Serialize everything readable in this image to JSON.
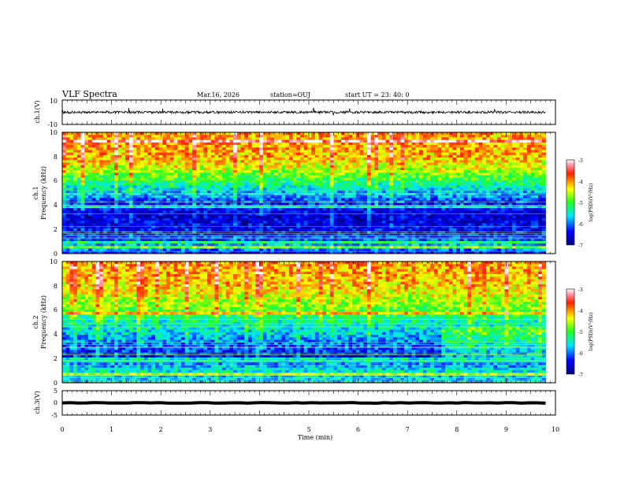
{
  "header": {
    "title": "VLF Spectra",
    "date": "Mar.16, 2026",
    "station": "station=OUJ",
    "start": "start  UT =   23: 40: 0"
  },
  "chart_data": [
    {
      "id": "ch1-waveform",
      "type": "line",
      "ylabel": "ch.1(V)",
      "ylim": [
        -10,
        10
      ],
      "yticks": [
        "10",
        "-10"
      ],
      "xlim": [
        0,
        10
      ],
      "description_values": {
        "baseline": 0,
        "noise_amplitude": 2,
        "data_end_min": 9.8
      }
    },
    {
      "id": "ch1-spectrogram",
      "type": "heatmap",
      "ylabel_top": "ch.1",
      "ylabel": "Frequency (kHz)",
      "ylim": [
        0,
        10
      ],
      "yticks": [
        "0",
        "2",
        "4",
        "6",
        "8",
        "10"
      ],
      "xlim": [
        0,
        10
      ],
      "data_end_min": 9.8,
      "colorbar": {
        "label": "log(PSD)(V²/Hz)",
        "range": [
          -7,
          -3
        ],
        "ticks": [
          "-3",
          "-4",
          "-5",
          "-6",
          "-7"
        ]
      },
      "level_profile": [
        {
          "freq": 0.0,
          "level": -6.5
        },
        {
          "freq": 0.5,
          "level": -5.6
        },
        {
          "freq": 1.0,
          "level": -6.2
        },
        {
          "freq": 2.0,
          "level": -6.4
        },
        {
          "freq": 3.0,
          "level": -6.6
        },
        {
          "freq": 4.0,
          "level": -6.3
        },
        {
          "freq": 5.0,
          "level": -5.8
        },
        {
          "freq": 6.0,
          "level": -5.1
        },
        {
          "freq": 7.0,
          "level": -4.5
        },
        {
          "freq": 8.0,
          "level": -4.1
        },
        {
          "freq": 10.0,
          "level": -4.0
        }
      ]
    },
    {
      "id": "ch2-spectrogram",
      "type": "heatmap",
      "ylabel_top": "ch.2",
      "ylabel": "Frequency (kHz)",
      "ylim": [
        0,
        10
      ],
      "yticks": [
        "0",
        "2",
        "4",
        "6",
        "8",
        "10"
      ],
      "xlim": [
        0,
        10
      ],
      "data_end_min": 9.8,
      "colorbar": {
        "label": "log(PSD)(V²/Hz)",
        "range": [
          -7,
          -3
        ],
        "ticks": [
          "-3",
          "-4",
          "-5",
          "-6",
          "-7"
        ]
      },
      "level_profile": [
        {
          "freq": 0.0,
          "level": -5.8
        },
        {
          "freq": 1.0,
          "level": -5.5
        },
        {
          "freq": 2.0,
          "level": -6.4
        },
        {
          "freq": 3.0,
          "level": -6.1
        },
        {
          "freq": 4.0,
          "level": -5.7
        },
        {
          "freq": 5.0,
          "level": -5.4
        },
        {
          "freq": 6.0,
          "level": -4.9
        },
        {
          "freq": 7.0,
          "level": -4.5
        },
        {
          "freq": 8.0,
          "level": -4.2
        },
        {
          "freq": 10.0,
          "level": -4.0
        }
      ]
    },
    {
      "id": "ch3-waveform",
      "type": "line",
      "ylabel": "ch.3(V)",
      "ylim": [
        -5,
        5
      ],
      "yticks": [
        "5",
        "0",
        "-5"
      ],
      "xlim": [
        0,
        10
      ],
      "description_values": {
        "baseline": 0,
        "noise_amplitude": 0.3,
        "data_end_min": 9.8
      }
    }
  ],
  "xaxis": {
    "label": "Time (min)",
    "ticks": [
      "0",
      "1",
      "2",
      "3",
      "4",
      "5",
      "6",
      "7",
      "8",
      "9",
      "10"
    ]
  }
}
